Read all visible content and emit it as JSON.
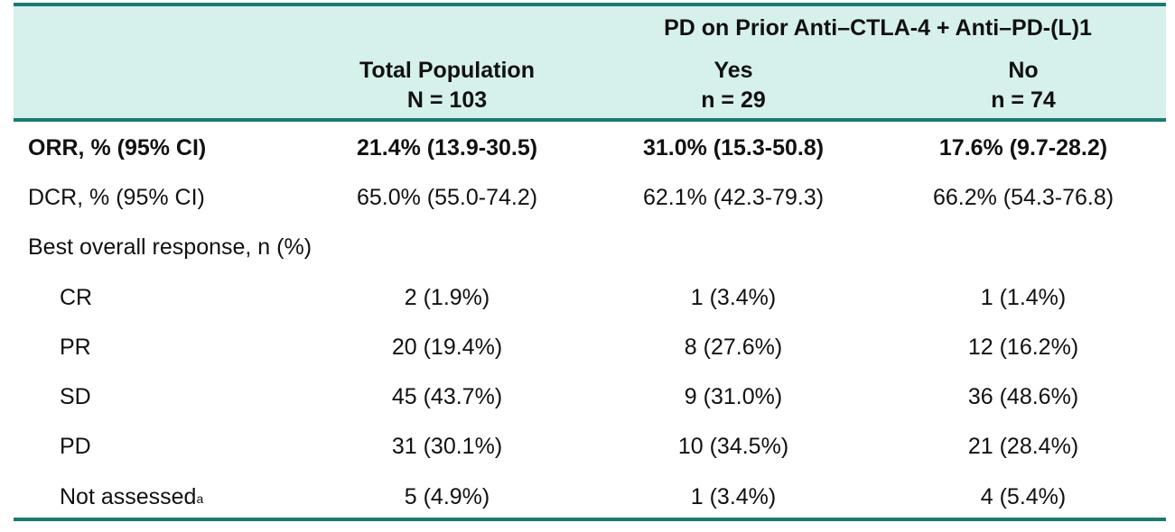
{
  "header": {
    "group_label": "PD on Prior Anti–CTLA-4 + Anti–PD-(L)1",
    "columns": [
      {
        "title": "Total Population",
        "n": "N = 103"
      },
      {
        "title": "Yes",
        "n": "n = 29"
      },
      {
        "title": "No",
        "n": "n = 74"
      }
    ]
  },
  "rows": [
    {
      "label": "ORR, % (95% CI)",
      "values": [
        "21.4% (13.9-30.5)",
        "31.0% (15.3-50.8)",
        "17.6% (9.7-28.2)"
      ]
    },
    {
      "label": "DCR, % (95% CI)",
      "values": [
        "65.0% (55.0-74.2)",
        "62.1% (42.3-79.3)",
        "66.2% (54.3-76.8)"
      ]
    },
    {
      "label": "Best overall response, n (%)"
    },
    {
      "label": "CR",
      "values": [
        "2 (1.9%)",
        "1 (3.4%)",
        "1 (1.4%)"
      ]
    },
    {
      "label": "PR",
      "values": [
        "20 (19.4%)",
        "8 (27.6%)",
        "12 (16.2%)"
      ]
    },
    {
      "label": "SD",
      "values": [
        "45 (43.7%)",
        "9 (31.0%)",
        "36 (48.6%)"
      ]
    },
    {
      "label": "PD",
      "values": [
        "31 (30.1%)",
        "10 (34.5%)",
        "21 (28.4%)"
      ]
    },
    {
      "label": "Not assessed",
      "footnote": "a",
      "values": [
        "5 (4.9%)",
        "1 (3.4%)",
        "4 (5.4%)"
      ]
    }
  ],
  "colors": {
    "rule": "#1a7a72",
    "header_bg": "#d6f0ec"
  }
}
